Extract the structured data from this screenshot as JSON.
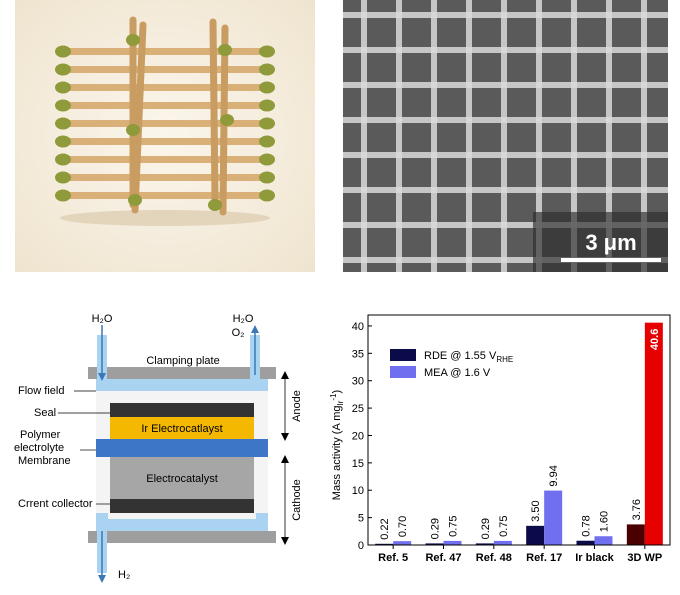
{
  "sem": {
    "scale_bar_label": "3 μm"
  },
  "cell": {
    "h2o_in": "H₂O",
    "h2o_out": "H₂O",
    "o2_out": "O₂",
    "h2_out": "H₂",
    "clamping_plate": "Clamping plate",
    "flow_field": "Flow field",
    "seal": "Seal",
    "ir_layer": "Ir Electrocatlayst",
    "membrane": "Polymer\nelectrolyte\nMembrane",
    "electrocatalyst": "Electrocatalyst",
    "current_collector": "Crrent collector",
    "anode": "Anode",
    "cathode": "Cathode"
  },
  "chart_data": {
    "type": "bar",
    "ylabel": "Mass activity (A mg_Ir^-1)",
    "ylim": [
      0,
      42
    ],
    "yticks": [
      0,
      5,
      10,
      15,
      20,
      25,
      30,
      35,
      40
    ],
    "categories": [
      "Ref. 5",
      "Ref. 47",
      "Ref. 48",
      "Ref. 17",
      "Ir black",
      "3D WP"
    ],
    "series": [
      {
        "name": "RDE @ 1.55 V_RHE",
        "values": [
          0.22,
          0.29,
          0.29,
          3.5,
          0.78,
          3.76
        ],
        "labels": [
          "0.22",
          "0.29",
          "0.29",
          "3.50",
          "0.78",
          "3.76"
        ]
      },
      {
        "name": "MEA @ 1.6 V",
        "values": [
          0.7,
          0.75,
          0.75,
          9.94,
          1.6,
          40.6
        ],
        "labels": [
          "0.70",
          "0.75",
          "0.75",
          "9.94",
          "1.60",
          "40.6"
        ]
      }
    ],
    "colors": {
      "rde": "#0b0b4a",
      "mea": "#6f6ff0",
      "highlight_rde": "#4a0000",
      "highlight_mea": "#e60000"
    },
    "legend": "top-left"
  }
}
